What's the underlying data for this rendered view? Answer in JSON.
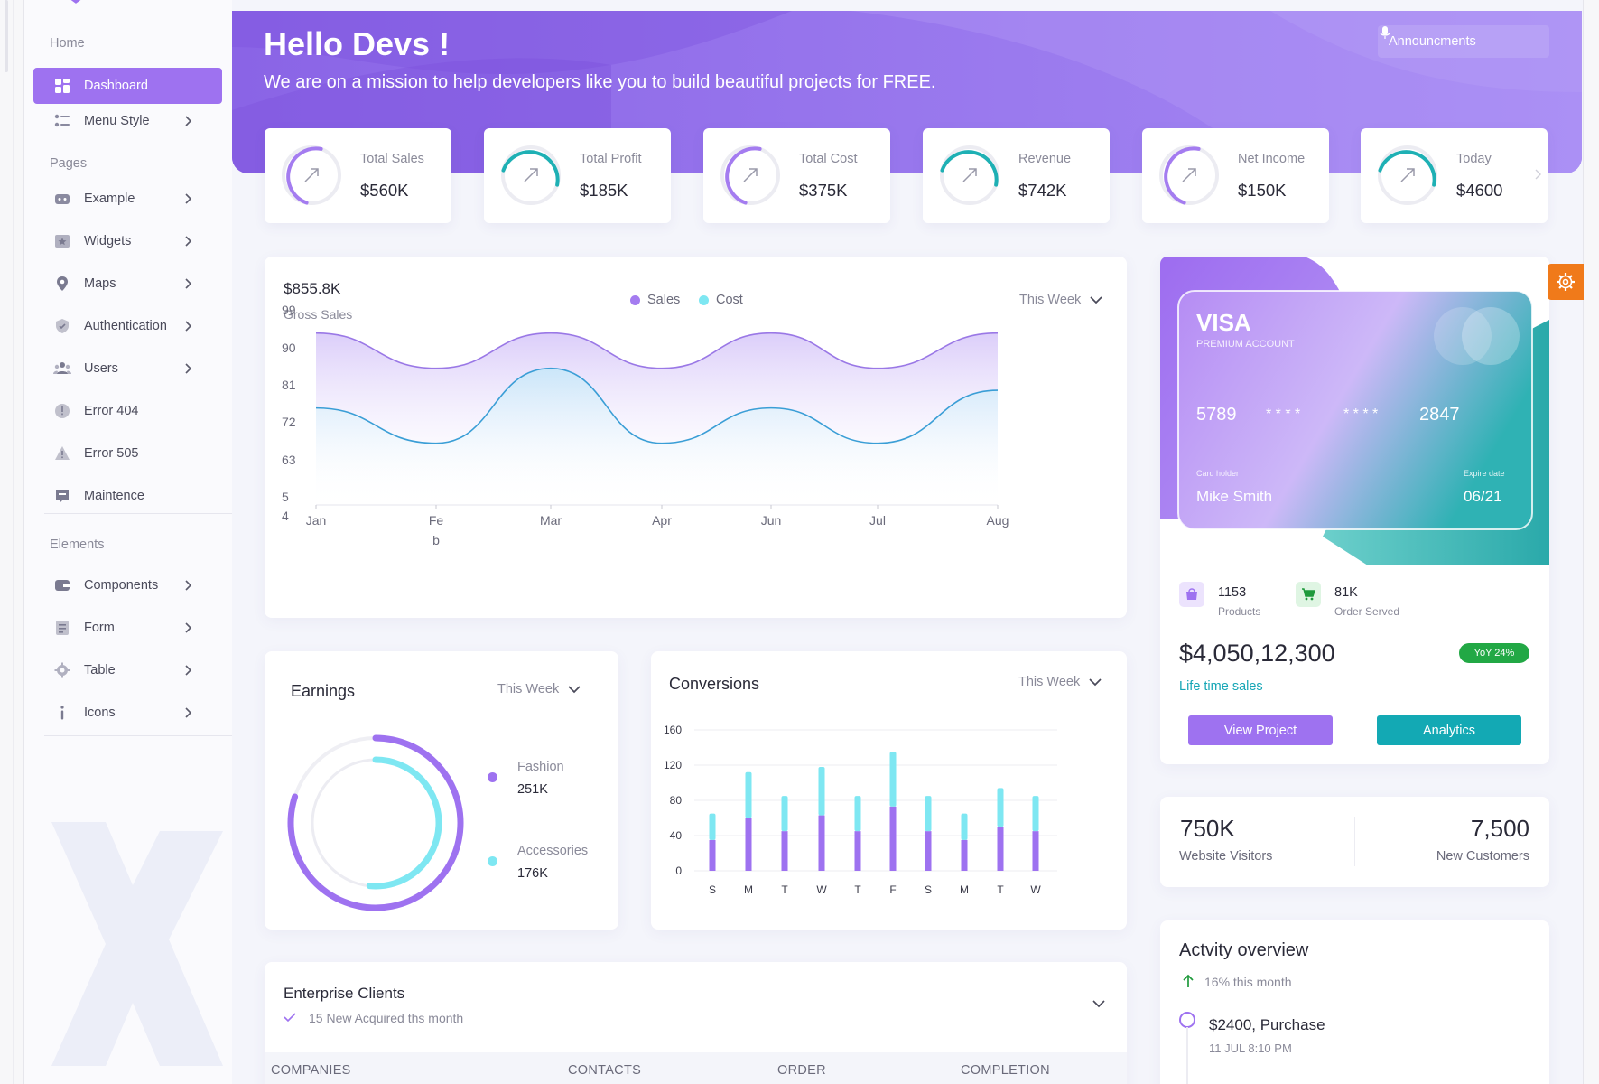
{
  "sidebar": {
    "sections": {
      "home": "Home",
      "pages": "Pages",
      "elements": "Elements"
    },
    "home_items": [
      {
        "label": "Dashboard",
        "icon": "dashboard-grid-icon",
        "active": true
      },
      {
        "label": "Menu Style",
        "icon": "menu-style-icon"
      }
    ],
    "page_items": [
      {
        "label": "Example",
        "icon": "example-icon"
      },
      {
        "label": "Widgets",
        "icon": "widgets-icon"
      },
      {
        "label": "Maps",
        "icon": "map-pin-icon"
      },
      {
        "label": "Authentication",
        "icon": "shield-icon"
      },
      {
        "label": "Users",
        "icon": "users-icon"
      },
      {
        "label": "Error 404",
        "icon": "error-icon"
      },
      {
        "label": "Error 505",
        "icon": "warning-icon"
      },
      {
        "label": "Maintence",
        "icon": "maintenance-icon"
      }
    ],
    "element_items": [
      {
        "label": "Components",
        "icon": "components-icon"
      },
      {
        "label": "Form",
        "icon": "form-icon"
      },
      {
        "label": "Table",
        "icon": "table-icon"
      },
      {
        "label": "Icons",
        "icon": "info-icon"
      }
    ]
  },
  "hero": {
    "title": "Hello Devs !",
    "subtitle": "We are on a mission to help developers like you to build beautiful projects for FREE.",
    "announcements": "Announcments"
  },
  "stats": [
    {
      "label": "Total Sales",
      "value": "$560K",
      "color": "#a47cf0"
    },
    {
      "label": "Total Profit",
      "value": "$185K",
      "color": "#1eb0b4"
    },
    {
      "label": "Total Cost",
      "value": "$375K",
      "color": "#a47cf0"
    },
    {
      "label": "Revenue",
      "value": "$742K",
      "color": "#1eb0b4"
    },
    {
      "label": "Net Income",
      "value": "$150K",
      "color": "#a47cf0"
    },
    {
      "label": "Today",
      "value": "$4600",
      "color": "#1eb0b4"
    }
  ],
  "gross_sales": {
    "value": "$855.8K",
    "label": "Gross Sales",
    "period": "This Week",
    "legend": [
      {
        "name": "Sales",
        "color": "#a47cf0"
      },
      {
        "name": "Cost",
        "color": "#7ee7f2"
      }
    ]
  },
  "earnings": {
    "title": "Earnings",
    "period": "This Week",
    "items": [
      {
        "label": "Fashion",
        "value": "251K",
        "color": "#9e72f0"
      },
      {
        "label": "Accessories",
        "value": "176K",
        "color": "#7ee7f2"
      }
    ]
  },
  "conversions": {
    "title": "Conversions",
    "period": "This Week"
  },
  "enterprise": {
    "title": "Enterprise Clients",
    "subtitle": "15 New Acquired ths month",
    "columns": [
      "COMPANIES",
      "CONTACTS",
      "ORDER",
      "COMPLETION"
    ]
  },
  "card": {
    "brand": "VISA",
    "tier": "PREMIUM ACCOUNT",
    "num_first": "5789",
    "num_mask1": "* * * *",
    "num_mask2": "* * * *",
    "num_last": "2847",
    "holder_label": "Card holder",
    "holder": "Mike Smith",
    "expire_label": "Expire date",
    "expire": "06/21"
  },
  "summary": {
    "products_value": "1153",
    "products_label": "Products",
    "orders_value": "81K",
    "orders_label": "Order Served",
    "lifetime": "$4,050,12,300",
    "yoy": "YoY 24%",
    "lifetime_label": "Life time sales",
    "view_project": "View Project",
    "analytics": "Analytics"
  },
  "visitors": {
    "visitors_value": "750K",
    "visitors_label": "Website Visitors",
    "customers_value": "7,500",
    "customers_label": "New Customers"
  },
  "activity": {
    "title": "Actvity overview",
    "trend": "16% this month",
    "first_item": "$2400, Purchase",
    "first_time": "11 JUL 8:10 PM"
  },
  "chart_data": [
    {
      "type": "area",
      "x": [
        "Jan",
        "Feb",
        "Mar",
        "Apr",
        "Jun",
        "Jul",
        "Aug"
      ],
      "ytick_labels": [
        "99",
        "90",
        "81",
        "72",
        "63",
        "5",
        "4"
      ],
      "series": [
        {
          "name": "Sales",
          "values": [
            97,
            89,
            97,
            89,
            97,
            89,
            97
          ]
        },
        {
          "name": "Cost",
          "values": [
            80,
            72,
            89,
            72,
            80,
            72,
            84
          ]
        }
      ]
    },
    {
      "type": "pie",
      "series": [
        {
          "name": "Fashion",
          "value": 251
        },
        {
          "name": "Accessories",
          "value": 176
        }
      ]
    },
    {
      "type": "bar",
      "categories": [
        "S",
        "M",
        "T",
        "W",
        "T",
        "F",
        "S",
        "M",
        "T",
        "W"
      ],
      "yticks": [
        0,
        40,
        80,
        120,
        160
      ],
      "ylim": [
        0,
        160
      ],
      "series": [
        {
          "name": "series-1",
          "values": [
            35,
            60,
            45,
            63,
            45,
            73,
            45,
            35,
            50,
            45
          ]
        },
        {
          "name": "series-2",
          "values": [
            30,
            52,
            40,
            55,
            40,
            62,
            40,
            30,
            44,
            40
          ]
        }
      ]
    }
  ]
}
